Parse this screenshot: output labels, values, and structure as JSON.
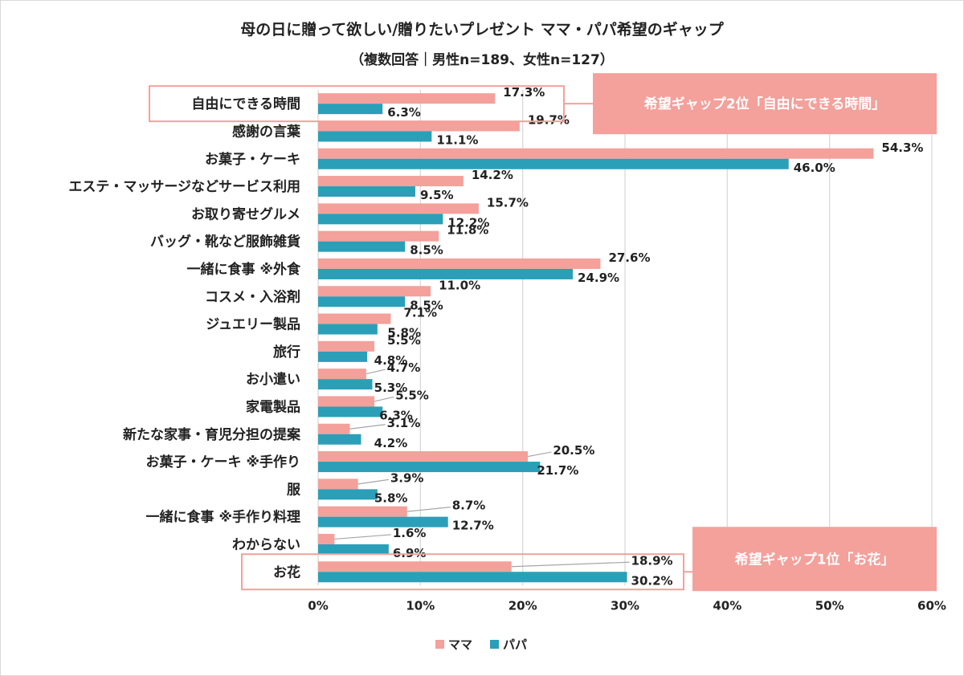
{
  "chart_data": {
    "type": "bar",
    "orientation": "horizontal",
    "title": "母の日に贈って欲しい/贈りたいプレゼント ママ・パパ希望のギャップ",
    "subtitle": "（複数回答｜男性n=189、女性n=127）",
    "categories": [
      "自由にできる時間",
      "感謝の言葉",
      "お菓子・ケーキ",
      "エステ・マッサージなどサービス利用",
      "お取り寄せグルメ",
      "バッグ・靴など服飾雑貨",
      "一緒に食事 ※外食",
      "コスメ・入浴剤",
      "ジュエリー製品",
      "旅行",
      "お小遣い",
      "家電製品",
      "新たな家事・育児分担の提案",
      "お菓子・ケーキ ※手作り",
      "服",
      "一緒に食事 ※手作り料理",
      "わからない",
      "お花"
    ],
    "series": [
      {
        "name": "ママ",
        "color": "#f4a09b",
        "values": [
          17.3,
          19.7,
          54.3,
          14.2,
          15.7,
          11.8,
          27.6,
          11.0,
          7.1,
          5.5,
          4.7,
          5.5,
          3.1,
          20.5,
          3.9,
          8.7,
          1.6,
          18.9
        ],
        "labels": [
          "17.3%",
          "19.7%",
          "54.3%",
          "14.2%",
          "15.7%",
          "11.8%",
          "27.6%",
          "11.0%",
          "7.1%",
          "5.5%",
          "4.7%",
          "5.5%",
          "3.1%",
          "20.5%",
          "3.9%",
          "8.7%",
          "1.6%",
          "18.9%"
        ]
      },
      {
        "name": "パパ",
        "color": "#2b9fb8",
        "values": [
          6.3,
          11.1,
          46.0,
          9.5,
          12.2,
          8.5,
          24.9,
          8.5,
          5.8,
          4.8,
          5.3,
          6.3,
          4.2,
          21.7,
          5.8,
          12.7,
          6.9,
          30.2
        ],
        "labels": [
          "6.3%",
          "11.1%",
          "46.0%",
          "9.5%",
          "12.2%",
          "8.5%",
          "24.9%",
          "8.5%",
          "5.8%",
          "4.8%",
          "5.3%",
          "6.3%",
          "4.2%",
          "21.7%",
          "5.8%",
          "12.7%",
          "6.9%",
          "30.2%"
        ]
      }
    ],
    "xlim": [
      0,
      60
    ],
    "xticks": [
      "0%",
      "10%",
      "20%",
      "30%",
      "40%",
      "50%",
      "60%"
    ],
    "grid": "vertical",
    "legend": "bottom-center",
    "annotations": [
      {
        "text": "希望ギャップ2位「自由にできる時間」",
        "category_index": 0
      },
      {
        "text": "希望ギャップ1位「お花」",
        "category_index": 17
      }
    ],
    "callout_color": "#f4a09b"
  }
}
